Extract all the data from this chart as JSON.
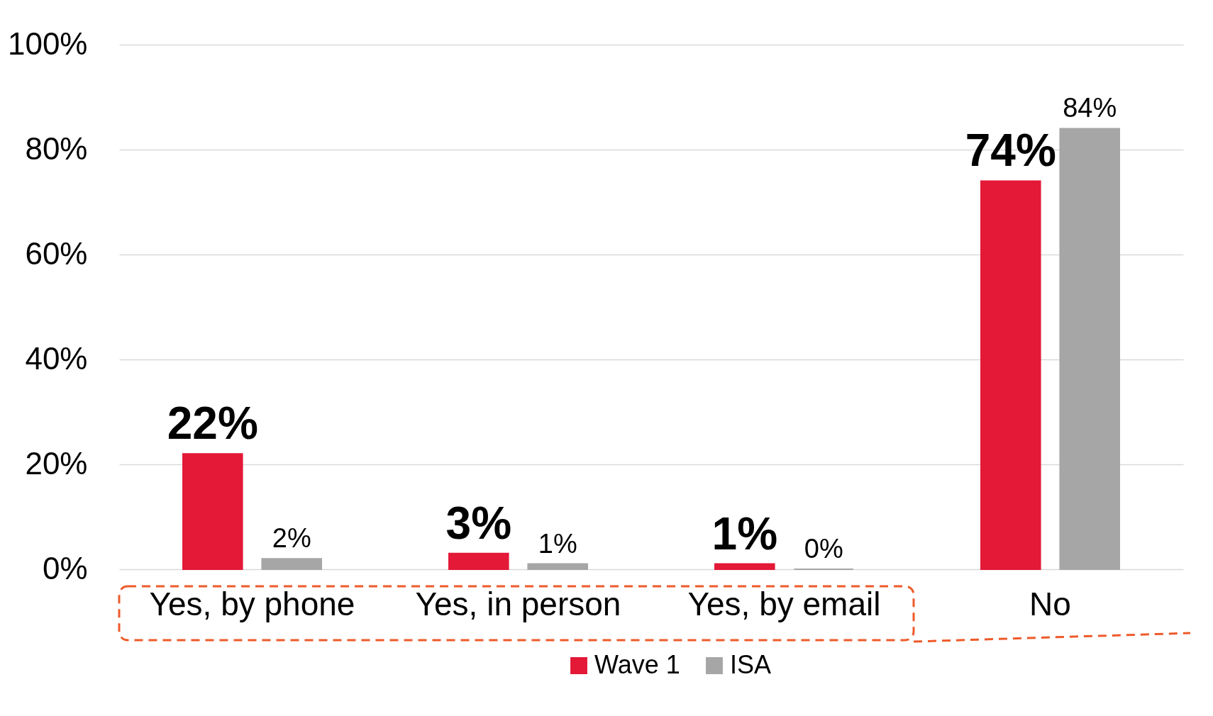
{
  "chart_data": {
    "type": "bar",
    "categories": [
      "Yes, by phone",
      "Yes, in person",
      "Yes, by email",
      "No"
    ],
    "series": [
      {
        "name": "Wave 1",
        "color": "#e31937",
        "values": [
          22,
          3,
          1,
          74
        ],
        "value_labels": [
          "22%",
          "3%",
          "1%",
          "74%"
        ]
      },
      {
        "name": "ISA",
        "color": "#a6a6a6",
        "values": [
          2,
          1,
          0,
          84
        ],
        "value_labels": [
          "2%",
          "1%",
          "0%",
          "84%"
        ]
      }
    ],
    "ylim": [
      0,
      100
    ],
    "yticks": [
      {
        "value": 0,
        "label": "0%"
      },
      {
        "value": 20,
        "label": "20%"
      },
      {
        "value": 40,
        "label": "40%"
      },
      {
        "value": 60,
        "label": "60%"
      },
      {
        "value": 80,
        "label": "80%"
      },
      {
        "value": 100,
        "label": "100%"
      }
    ],
    "grid": "y",
    "legend": "bottom"
  }
}
